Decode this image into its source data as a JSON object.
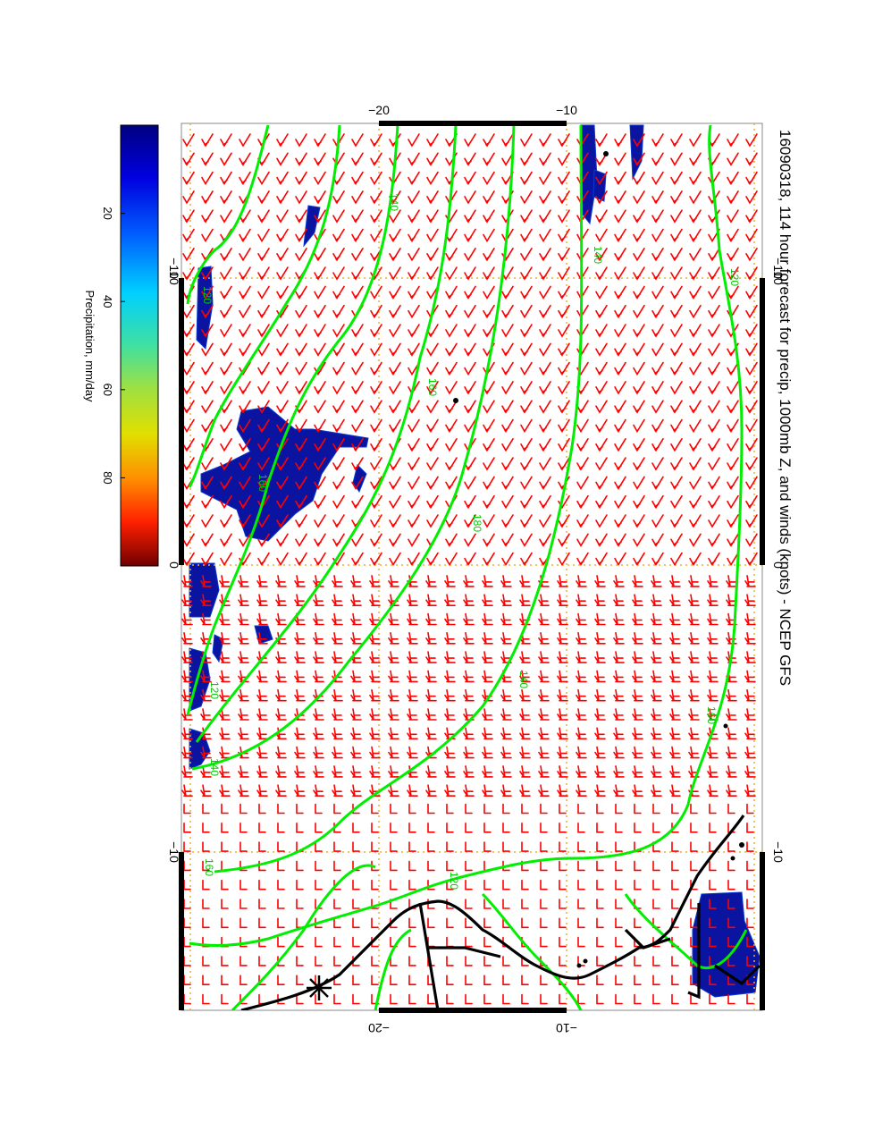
{
  "title": "16090318, 114 hour forecast for precip, 1000mb Z, and winds (knots) - NCEP GFS",
  "colorbar": {
    "label": "Precipitation, mm/day",
    "ticks": [
      "20",
      "40",
      "60",
      "80"
    ],
    "tick_values": [
      20,
      40,
      60,
      80
    ],
    "range": [
      0,
      100
    ],
    "colors": [
      "#000080",
      "#0000e0",
      "#0060ff",
      "#00d0ff",
      "#40e0a0",
      "#a0e040",
      "#e0e000",
      "#ff9000",
      "#ff2000",
      "#a00000",
      "#700000"
    ]
  },
  "map": {
    "lat_ticks": [
      {
        "label": "10",
        "value": 10
      },
      {
        "label": "0",
        "value": 0
      },
      {
        "label": "−10",
        "value": -10
      }
    ],
    "lon_ticks_top": [
      {
        "label": "−10",
        "value": -10
      },
      {
        "label": "−20",
        "value": -20
      }
    ],
    "lon_ticks_bottom": [
      {
        "label": "−10",
        "value": -10
      },
      {
        "label": "−20",
        "value": -20
      }
    ],
    "contour_labels": [
      "120",
      "140",
      "160",
      "180",
      "160",
      "140",
      "120",
      "140",
      "160",
      "120",
      "140",
      "120",
      "160"
    ],
    "colors": {
      "contour": "#00ee00",
      "wind_barb": "#ff0000",
      "coast": "#000000",
      "grid": "#e8b030",
      "precip": "#0a14a0"
    },
    "icons": {
      "marker": "asterisk-icon"
    }
  }
}
